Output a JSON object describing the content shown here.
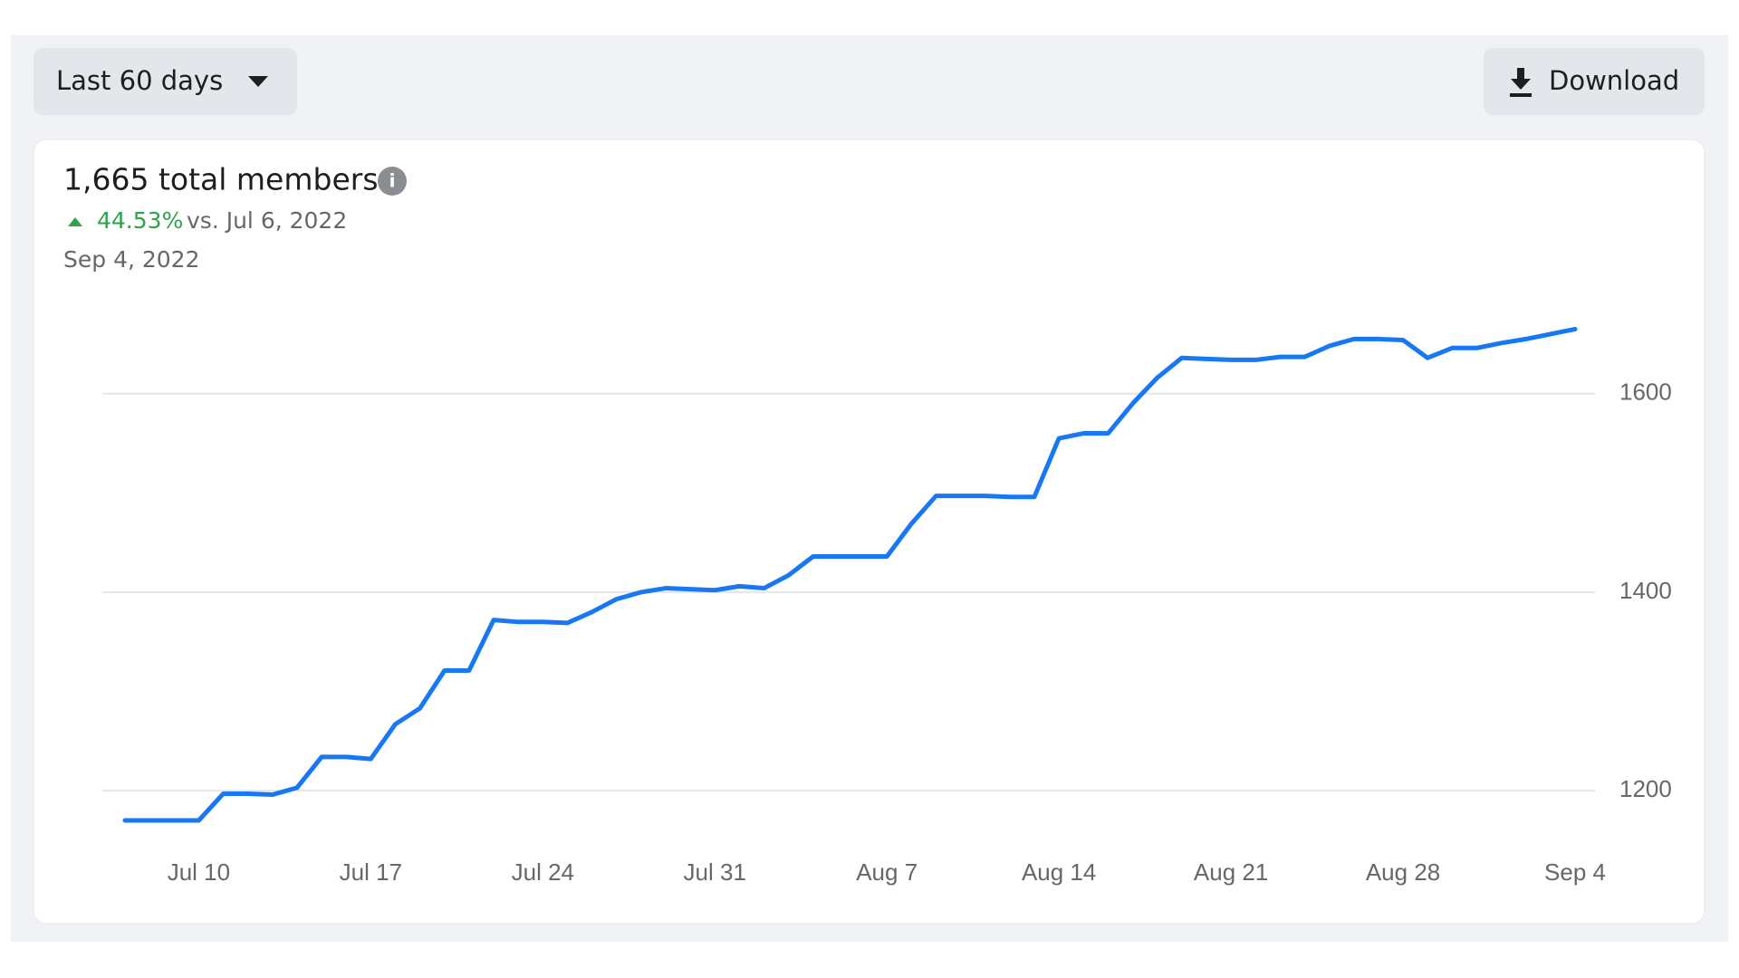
{
  "controls": {
    "range": "Last 60 days",
    "download": "Download"
  },
  "summary": {
    "title": "1,665 total members",
    "change": "44.53%",
    "comparison": "vs. Jul 6, 2022",
    "date": "Sep 4, 2022"
  },
  "chart_data": {
    "type": "line",
    "categories": [
      null,
      null,
      null,
      "Jul 10",
      null,
      null,
      null,
      null,
      null,
      null,
      "Jul 17",
      null,
      null,
      null,
      null,
      null,
      null,
      "Jul 24",
      null,
      null,
      null,
      null,
      null,
      null,
      "Jul 31",
      null,
      null,
      null,
      null,
      null,
      null,
      "Aug 7",
      null,
      null,
      null,
      null,
      null,
      null,
      "Aug 14",
      null,
      null,
      null,
      null,
      null,
      null,
      "Aug 21",
      null,
      null,
      null,
      null,
      null,
      null,
      "Aug 28",
      null,
      null,
      null,
      null,
      null,
      null,
      "Sep 4"
    ],
    "series": [
      {
        "color": "#1877f2",
        "values": [
          1170,
          1170,
          1170,
          1170,
          1197,
          1197,
          1196,
          1203,
          1234,
          1234,
          1232,
          1267,
          1283,
          1321,
          1321,
          1372,
          1370,
          1370,
          1369,
          1380,
          1393,
          1400,
          1404,
          1403,
          1402,
          1406,
          1404,
          1417,
          1436,
          1436,
          1436,
          1436,
          1469,
          1497,
          1497,
          1497,
          1496,
          1496,
          1555,
          1560,
          1560,
          1590,
          1616,
          1636,
          1635,
          1634,
          1634,
          1637,
          1637,
          1648,
          1655,
          1655,
          1654,
          1636,
          1646,
          1646,
          1651,
          1655,
          1660,
          1665
        ]
      }
    ],
    "ylim": [
      1160,
      1680
    ],
    "yticks": [
      1200,
      1400,
      1600
    ],
    "grid": true
  }
}
